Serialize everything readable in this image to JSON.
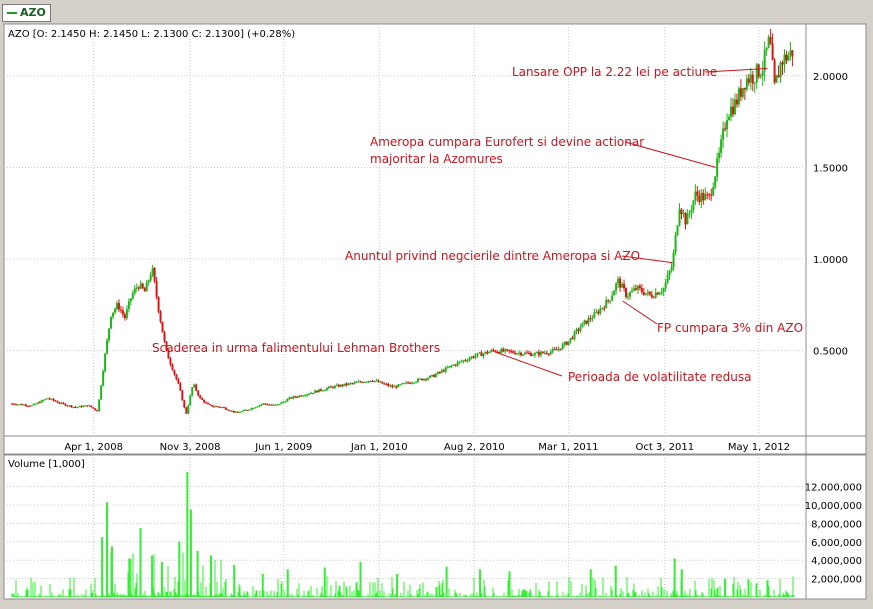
{
  "legend_tab": {
    "label": "AZO",
    "color": "#1aa01a"
  },
  "chart_data": [
    {
      "type": "candlestick",
      "title": "AZO [O: 2.1450  H: 2.1450  L: 2.1300  C: 2.1300] (+0.28%)",
      "symbol": "AZO",
      "ohlc_last": {
        "open": 2.145,
        "high": 2.145,
        "low": 2.13,
        "close": 2.13,
        "change_pct": "+0.28%"
      },
      "x_ticks": [
        "Apr 1, 2008",
        "Nov 3, 2008",
        "Jun 1, 2009",
        "Jan 1, 2010",
        "Aug 2, 2010",
        "Mar 1, 2011",
        "Oct 3, 2011",
        "May 1, 2012"
      ],
      "y_ticks": [
        "0.5000",
        "1.0000",
        "1.5000",
        "2.0000"
      ],
      "ylim": [
        0.05,
        2.25
      ],
      "up_color": "#22b41c",
      "down_color": "#d81414",
      "grid": true,
      "price_path": [
        [
          "2007-10-01",
          0.21
        ],
        [
          "2007-11-15",
          0.2
        ],
        [
          "2007-12-20",
          0.24
        ],
        [
          "2008-01-20",
          0.21
        ],
        [
          "2008-02-20",
          0.19
        ],
        [
          "2008-03-20",
          0.2
        ],
        [
          "2008-04-10",
          0.17
        ],
        [
          "2008-04-25",
          0.45
        ],
        [
          "2008-05-10",
          0.7
        ],
        [
          "2008-05-25",
          0.75
        ],
        [
          "2008-06-10",
          0.68
        ],
        [
          "2008-06-25",
          0.8
        ],
        [
          "2008-07-10",
          0.86
        ],
        [
          "2008-07-25",
          0.82
        ],
        [
          "2008-08-10",
          0.95
        ],
        [
          "2008-08-25",
          0.72
        ],
        [
          "2008-09-10",
          0.5
        ],
        [
          "2008-09-25",
          0.4
        ],
        [
          "2008-10-10",
          0.3
        ],
        [
          "2008-10-25",
          0.15
        ],
        [
          "2008-11-10",
          0.32
        ],
        [
          "2008-11-25",
          0.24
        ],
        [
          "2008-12-15",
          0.2
        ],
        [
          "2009-01-15",
          0.19
        ],
        [
          "2009-02-15",
          0.16
        ],
        [
          "2009-03-15",
          0.18
        ],
        [
          "2009-04-15",
          0.21
        ],
        [
          "2009-05-15",
          0.2
        ],
        [
          "2009-06-15",
          0.24
        ],
        [
          "2009-08-01",
          0.27
        ],
        [
          "2009-09-15",
          0.3
        ],
        [
          "2009-11-01",
          0.32
        ],
        [
          "2009-12-15",
          0.34
        ],
        [
          "2010-02-01",
          0.3
        ],
        [
          "2010-03-15",
          0.33
        ],
        [
          "2010-05-01",
          0.36
        ],
        [
          "2010-06-15",
          0.42
        ],
        [
          "2010-08-01",
          0.47
        ],
        [
          "2010-09-15",
          0.5
        ],
        [
          "2010-11-01",
          0.49
        ],
        [
          "2010-12-15",
          0.48
        ],
        [
          "2011-02-01",
          0.5
        ],
        [
          "2011-03-01",
          0.55
        ],
        [
          "2011-04-01",
          0.64
        ],
        [
          "2011-05-01",
          0.7
        ],
        [
          "2011-06-01",
          0.78
        ],
        [
          "2011-06-20",
          0.88
        ],
        [
          "2011-07-10",
          0.8
        ],
        [
          "2011-08-01",
          0.84
        ],
        [
          "2011-09-01",
          0.8
        ],
        [
          "2011-10-01",
          0.84
        ],
        [
          "2011-10-20",
          0.97
        ],
        [
          "2011-11-05",
          1.3
        ],
        [
          "2011-11-20",
          1.2
        ],
        [
          "2011-12-10",
          1.35
        ],
        [
          "2012-01-10",
          1.33
        ],
        [
          "2012-02-01",
          1.55
        ],
        [
          "2012-02-20",
          1.8
        ],
        [
          "2012-03-10",
          1.85
        ],
        [
          "2012-04-01",
          1.98
        ],
        [
          "2012-04-20",
          2.0
        ],
        [
          "2012-05-10",
          2.05
        ],
        [
          "2012-05-25",
          2.2
        ],
        [
          "2012-06-05",
          1.93
        ],
        [
          "2012-06-20",
          2.08
        ],
        [
          "2012-07-15",
          2.13
        ]
      ],
      "annotations": [
        {
          "text": "Lansare OPP la 2.22 lei pe actiune",
          "date": "2012-05-20",
          "value": 2.04
        },
        {
          "text": "Ameropa cumpara Eurofert si devine actionar",
          "date": "2012-01-25",
          "value": 1.5
        },
        {
          "text": "majoritar la Azomures",
          "date": null,
          "value": null
        },
        {
          "text": "Anuntul privind negcierile dintre Ameropa si AZO",
          "date": "2011-10-20",
          "value": 0.98
        },
        {
          "text": "FP cumpara 3% din AZO",
          "date": "2011-07-01",
          "value": 0.77
        },
        {
          "text": "Scaderea in urma falimentului Lehman  Brothers",
          "date": null,
          "value": null
        },
        {
          "text": "Perioada de volatilitate redusa",
          "date": "2010-09-20",
          "value": 0.49
        }
      ]
    },
    {
      "type": "bar",
      "title": "Volume [1,000]",
      "y_ticks": [
        "2,000,000",
        "4,000,000",
        "6,000,000",
        "8,000,000",
        "10,000,000",
        "12,000,000"
      ],
      "ylim": [
        0,
        13800000
      ],
      "color": "#33ee33",
      "spikes": [
        [
          "2008-04-20",
          6500000
        ],
        [
          "2008-05-01",
          10300000
        ],
        [
          "2008-05-12",
          5500000
        ],
        [
          "2008-06-20",
          4200000
        ],
        [
          "2008-07-15",
          7500000
        ],
        [
          "2008-08-10",
          4500000
        ],
        [
          "2008-09-01",
          3800000
        ],
        [
          "2008-10-10",
          6000000
        ],
        [
          "2008-10-28",
          13600000
        ],
        [
          "2008-11-05",
          9500000
        ],
        [
          "2008-11-20",
          5000000
        ],
        [
          "2008-12-20",
          4500000
        ],
        [
          "2009-02-10",
          3500000
        ],
        [
          "2009-04-15",
          2500000
        ],
        [
          "2009-06-10",
          3000000
        ],
        [
          "2009-09-01",
          3200000
        ],
        [
          "2009-11-20",
          3800000
        ],
        [
          "2010-02-10",
          2500000
        ],
        [
          "2010-06-01",
          3300000
        ],
        [
          "2010-08-15",
          3000000
        ],
        [
          "2010-10-20",
          2800000
        ],
        [
          "2011-04-20",
          3000000
        ],
        [
          "2011-06-15",
          3400000
        ],
        [
          "2011-10-25",
          4200000
        ],
        [
          "2011-11-10",
          3000000
        ],
        [
          "2012-02-15",
          2000000
        ],
        [
          "2012-05-20",
          1800000
        ]
      ]
    }
  ]
}
